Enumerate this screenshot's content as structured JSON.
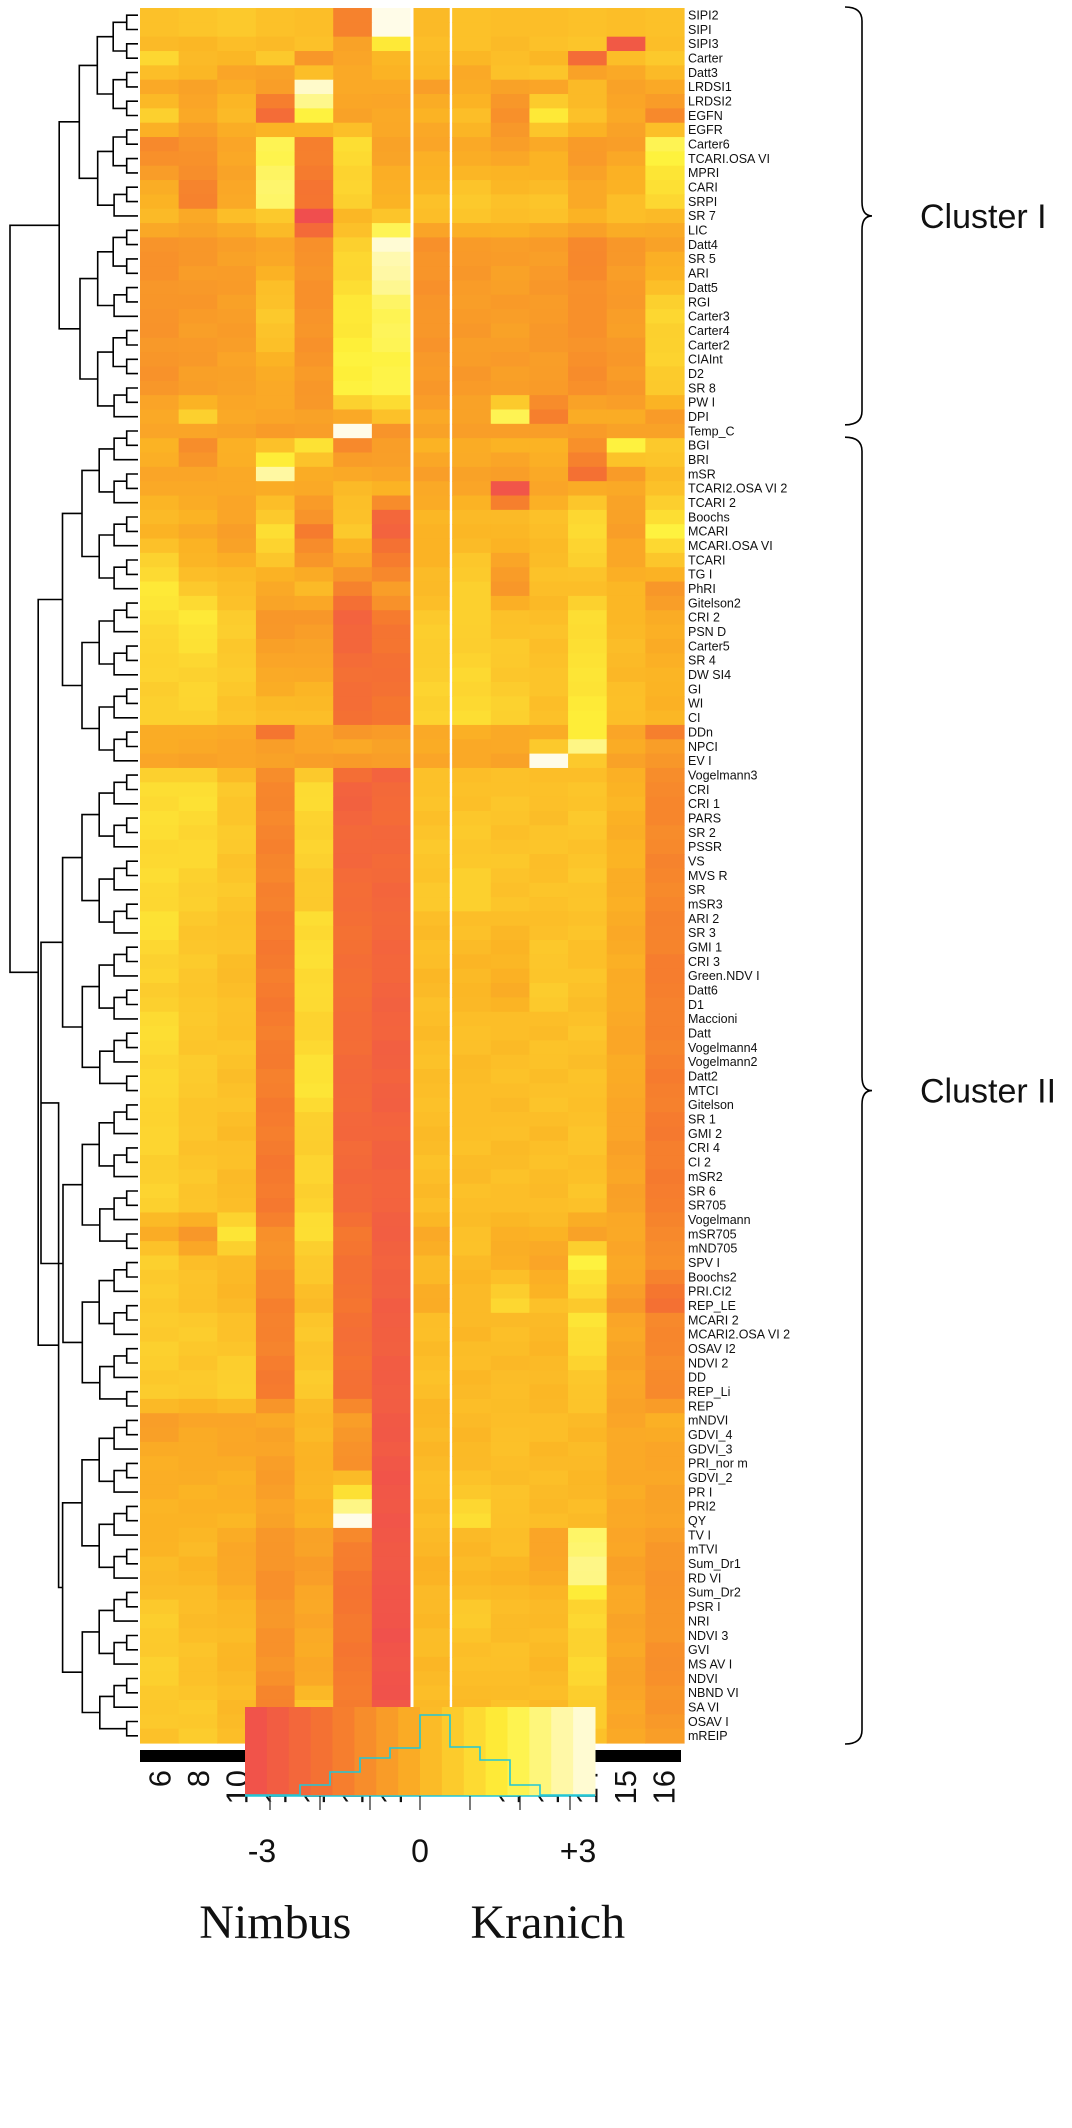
{
  "chart_data": {
    "type": "heatmap",
    "groups": [
      {
        "name": "Nimbus",
        "columns": [
          "6",
          "8",
          "10",
          "13",
          "14",
          "15",
          "16"
        ]
      },
      {
        "name": "Kranich",
        "columns": [
          "6",
          "8",
          "10",
          "13",
          "14",
          "15",
          "16"
        ]
      }
    ],
    "rows": [
      "SIPI2",
      "SIPI",
      "SIPI3",
      "Carter",
      "Datt3",
      "LRDSI1",
      "LRDSI2",
      "EGFN",
      "EGFR",
      "Carter6",
      "TCARI.OSA VI",
      "MPRI",
      "CARI",
      "SRPI",
      "SR 7",
      "LIC",
      "Datt4",
      "SR 5",
      "ARI",
      "Datt5",
      "RGI",
      "Carter3",
      "Carter4",
      "Carter2",
      "CIAInt",
      "D2",
      "SR 8",
      "PW I",
      "DPI",
      "Temp_C",
      "BGI",
      "BRI",
      "mSR",
      "TCARI2.OSA VI 2",
      "TCARI 2",
      "Boochs",
      "MCARI",
      "MCARI.OSA VI",
      "TCARI",
      "TG I",
      "PhRI",
      "Gitelson2",
      "CRI 2",
      "PSN D",
      "Carter5",
      "SR 4",
      "DW SI4",
      "GI",
      "WI",
      "CI",
      "DDn",
      "NPCI",
      "EV I",
      "Vogelmann3",
      "CRI",
      "CRI 1",
      "PARS",
      "SR 2",
      "PSSR",
      "VS",
      "MVS R",
      "SR",
      "mSR3",
      "ARI 2",
      "SR 3",
      "GMI 1",
      "CRI 3",
      "Green.NDV I",
      "Datt6",
      "D1",
      "Maccioni",
      "Datt",
      "Vogelmann4",
      "Vogelmann2",
      "Datt2",
      "MTCI",
      "Gitelson",
      "SR 1",
      "GMI 2",
      "CRI 4",
      "CI 2",
      "mSR2",
      "SR 6",
      "SR705",
      "Vogelmann",
      "mSR705",
      "mND705",
      "SPV I",
      "Boochs2",
      "PRI.CI2",
      "REP_LE",
      "MCARI 2",
      "MCARI2.OSA VI 2",
      "OSAV I2",
      "NDVI 2",
      "DD",
      "REP_Li",
      "REP",
      "mNDVI",
      "GDVI_4",
      "GDVI_3",
      "PRI_nor m",
      "GDVI_2",
      "PR I",
      "PRI2",
      "QY",
      "TV I",
      "mTVI",
      "Sum_Dr1",
      "RD VI",
      "Sum_Dr2",
      "PSR I",
      "NRI",
      "NDVI 3",
      "GVI",
      "MS AV I",
      "NDVI",
      "NBND VI",
      "SA VI",
      "OSAV I",
      "mREIP"
    ],
    "clusters": [
      {
        "label": "Cluster I",
        "first_row": "SIPI2",
        "last_row": "DPI"
      },
      {
        "label": "Cluster II",
        "first_row": "BGI",
        "last_row": "mREIP"
      }
    ],
    "color_scale": {
      "min_label": "-3",
      "mid_label": "0",
      "max_label": "+3",
      "range": [
        -3.5,
        3.5
      ],
      "stops": [
        "#f04e4e",
        "#f5762f",
        "#fbb324",
        "#fef23a",
        "#fffce8"
      ]
    },
    "row_profiles": {
      "SIPI2": [
        0.4,
        0.5,
        0.6,
        0.4,
        0.3,
        -1.4,
        3.5,
        0.2,
        0.4,
        0.3,
        0.3,
        0.4,
        0.3,
        0.4
      ],
      "SIPI": [
        0.4,
        0.5,
        0.6,
        0.4,
        0.3,
        -1.4,
        3.5,
        0.2,
        0.4,
        0.3,
        0.3,
        0.4,
        0.3,
        0.4
      ],
      "SIPI3": [
        0.2,
        0.1,
        0.3,
        0.2,
        0.4,
        -0.5,
        1.5,
        0.3,
        0.4,
        0.2,
        0.4,
        0.5,
        -3,
        0.3
      ],
      "Carter": [
        1.0,
        0.2,
        0.1,
        0.6,
        -0.8,
        -0.4,
        0.1,
        0.2,
        0.1,
        0.3,
        0.1,
        -2.2,
        0.3,
        0.6
      ],
      "Datt3": [
        0.3,
        0.1,
        -0.4,
        -0.5,
        0.3,
        -0.3,
        0.0,
        0.1,
        -0.3,
        0.4,
        0.5,
        -0.5,
        -0.3,
        0.2
      ],
      "LRDSI1": [
        -0.3,
        -0.5,
        -0.2,
        -0.6,
        3.2,
        -0.3,
        -0.3,
        -0.6,
        -0.2,
        -0.5,
        -0.4,
        0.2,
        -0.5,
        -0.3
      ],
      "EGFN": [
        0.8,
        -0.3,
        0.2,
        -2.2,
        1.8,
        -0.5,
        -0.3,
        0.0,
        0.3,
        -1.0,
        1.5,
        0.4,
        -0.3,
        -1.2
      ],
      "Carter6": [
        -1.2,
        -0.9,
        -0.4,
        2.0,
        -1.5,
        1.2,
        -0.5,
        -0.4,
        -0.3,
        -0.6,
        -0.3,
        -0.7,
        -0.6,
        2.0
      ],
      "SRPI": [
        0.0,
        -1.4,
        -0.3,
        2.2,
        -1.8,
        0.8,
        0.0,
        0.4,
        0.6,
        0.4,
        0.5,
        -0.3,
        0.3,
        1.0
      ],
      "SR 7": [
        0.2,
        -0.3,
        0.3,
        0.6,
        -3.5,
        0.1,
        0.5,
        0.3,
        0.5,
        0.3,
        0.4,
        0.0,
        0.3,
        0.2
      ],
      "Datt4": [
        -0.9,
        -0.8,
        -0.6,
        -0.4,
        -1.0,
        0.8,
        3.3,
        -1.0,
        -0.7,
        -0.6,
        -0.7,
        -1.2,
        -0.8,
        -0.5
      ],
      "Carter3": [
        -0.9,
        -0.7,
        -0.6,
        0.6,
        -0.9,
        1.5,
        2.0,
        -0.8,
        -0.7,
        -0.6,
        -0.7,
        -1.0,
        -0.6,
        1.0
      ],
      "SR 8": [
        -0.8,
        -0.6,
        -0.5,
        -0.3,
        -0.8,
        1.8,
        1.9,
        -0.8,
        -0.7,
        -0.6,
        -0.7,
        -1.0,
        -0.8,
        0.6
      ],
      "DPI": [
        -0.3,
        0.8,
        -0.3,
        -0.4,
        -0.5,
        -0.3,
        0.4,
        -0.3,
        -0.5,
        2.0,
        -1.5,
        -0.2,
        -0.2,
        -0.7
      ],
      "Temp_C": [
        -0.4,
        -0.4,
        -0.5,
        -0.7,
        -0.6,
        3.6,
        -0.9,
        -0.5,
        -0.6,
        -0.6,
        -0.6,
        -0.7,
        -0.5,
        -0.5
      ],
      "BGI": [
        0.0,
        -1.1,
        -0.1,
        0.4,
        1.3,
        -1.2,
        -0.6,
        0.0,
        -0.2,
        0.0,
        0.0,
        -1.0,
        1.8,
        0.6
      ],
      "mSR": [
        -0.4,
        -0.4,
        -0.3,
        2.8,
        -0.2,
        -0.3,
        -0.4,
        -0.6,
        -0.5,
        -0.6,
        -0.3,
        -2.0,
        -0.7,
        0.2
      ],
      "TCARI2.OSA VI 2": [
        -0.3,
        -0.3,
        -0.3,
        -0.2,
        -0.3,
        0.2,
        0.0,
        -0.3,
        -0.4,
        -3.2,
        -0.4,
        -0.2,
        -0.3,
        0.4
      ],
      "Boochs": [
        0.2,
        0.0,
        -0.4,
        0.6,
        -0.9,
        0.4,
        -2.4,
        0.1,
        0.2,
        0.2,
        0.4,
        1.0,
        -0.5,
        1.2
      ],
      "MCARI": [
        0.0,
        -0.3,
        -0.6,
        1.2,
        -1.6,
        0.6,
        -2.6,
        0.0,
        0.1,
        0.1,
        0.3,
        1.1,
        -0.6,
        1.8
      ],
      "PhRI": [
        1.5,
        0.6,
        0.3,
        -0.3,
        0.2,
        -1.4,
        -0.6,
        0.2,
        0.8,
        -0.8,
        0.3,
        0.3,
        0.1,
        -0.8
      ],
      "CRI 2": [
        1.2,
        1.5,
        0.7,
        -0.8,
        -0.8,
        -2.6,
        -1.6,
        0.6,
        0.8,
        0.4,
        0.3,
        1.2,
        0.1,
        -0.2
      ],
      "SR 4": [
        0.9,
        1.0,
        0.6,
        -0.4,
        -0.4,
        -2.2,
        -2.0,
        0.7,
        0.9,
        0.6,
        0.4,
        1.3,
        0.2,
        -0.1
      ],
      "CI": [
        0.8,
        0.8,
        0.5,
        0.3,
        0.3,
        -2.0,
        -1.8,
        0.9,
        1.2,
        0.8,
        0.4,
        1.6,
        0.3,
        0.1
      ],
      "DDn": [
        -0.2,
        -0.2,
        -0.3,
        -1.8,
        -0.4,
        -0.8,
        -0.7,
        -0.3,
        -0.1,
        -0.3,
        -0.2,
        1.6,
        -0.4,
        -1.5
      ],
      "NPCI": [
        -0.2,
        -0.3,
        -0.4,
        -0.6,
        -0.4,
        -0.3,
        -0.5,
        -0.2,
        -0.3,
        -0.3,
        0.6,
        2.5,
        -0.2,
        -0.6
      ],
      "EV I": [
        -0.4,
        -0.5,
        -0.4,
        -0.5,
        -0.6,
        -0.7,
        -0.6,
        -0.4,
        -0.3,
        -0.5,
        3.5,
        0.6,
        -0.5,
        -0.8
      ],
      "Vogelmann3": [
        0.8,
        0.8,
        0.2,
        -1.1,
        0.6,
        -2.1,
        -2.6,
        0.4,
        0.3,
        0.4,
        0.3,
        0.3,
        -0.1,
        -1.1
      ],
      "CRI": [
        1.2,
        1.2,
        0.6,
        -1.3,
        1.1,
        -2.6,
        -2.3,
        0.4,
        0.4,
        0.4,
        0.4,
        0.5,
        0.0,
        -1.2
      ],
      "mSR3": [
        1.0,
        0.8,
        0.5,
        -1.4,
        0.6,
        -2.2,
        -2.4,
        0.6,
        0.8,
        0.5,
        0.4,
        0.5,
        -0.1,
        -1.3
      ],
      "ARI 2": [
        1.3,
        0.6,
        0.4,
        -1.6,
        1.2,
        -2.1,
        -2.3,
        0.3,
        0.3,
        0.3,
        0.3,
        0.4,
        -0.2,
        -1.4
      ],
      "Datt6": [
        0.7,
        0.5,
        0.3,
        -1.6,
        1.1,
        -2.0,
        -2.6,
        0.2,
        0.1,
        -0.2,
        0.7,
        0.4,
        -0.2,
        -1.5
      ],
      "Maccioni": [
        1.1,
        0.6,
        0.4,
        -1.6,
        0.9,
        -2.2,
        -2.6,
        0.3,
        0.3,
        0.3,
        0.3,
        0.4,
        -0.3,
        -1.4
      ],
      "MTCI": [
        1.0,
        0.6,
        0.4,
        -1.5,
        1.4,
        -2.3,
        -2.7,
        0.3,
        0.3,
        0.3,
        0.4,
        0.4,
        -0.3,
        -1.5
      ],
      "SR 1": [
        0.9,
        0.5,
        0.3,
        -1.6,
        0.8,
        -2.4,
        -2.6,
        0.3,
        0.3,
        0.3,
        0.3,
        0.4,
        -0.4,
        -1.6
      ],
      "SR705": [
        0.8,
        0.5,
        0.3,
        -1.7,
        0.9,
        -2.3,
        -2.6,
        0.3,
        0.3,
        0.3,
        0.3,
        0.4,
        -0.5,
        -1.5
      ],
      "mSR705": [
        -0.2,
        -0.8,
        1.4,
        -1.0,
        1.2,
        -1.7,
        -2.8,
        -0.3,
        0.4,
        -0.1,
        0.0,
        -0.5,
        -0.3,
        -1.2
      ],
      "SPV I": [
        0.8,
        0.3,
        0.2,
        -1.0,
        0.6,
        -2.0,
        -2.6,
        0.2,
        0.2,
        -0.1,
        -0.4,
        1.8,
        -0.3,
        -1.0
      ],
      "REP_LE": [
        0.6,
        0.4,
        0.2,
        -1.5,
        0.2,
        -1.8,
        -2.9,
        -0.2,
        0.2,
        1.0,
        0.4,
        0.6,
        -0.8,
        -2.0
      ],
      "MCARI 2": [
        0.7,
        0.6,
        0.4,
        -1.4,
        0.5,
        -2.0,
        -2.8,
        0.3,
        0.2,
        0.2,
        0.2,
        1.4,
        -0.4,
        -1.2
      ],
      "REP_Li": [
        0.7,
        0.6,
        0.8,
        -1.6,
        0.6,
        -2.0,
        -2.8,
        0.3,
        0.2,
        0.3,
        0.1,
        0.5,
        -0.4,
        -1.2
      ],
      "mNDVI": [
        -0.6,
        -0.4,
        -0.4,
        -0.3,
        0.1,
        -0.6,
        -3.0,
        0.1,
        0.2,
        0.3,
        0.3,
        0.2,
        -0.4,
        -0.1
      ],
      "PRI_nor m": [
        -0.1,
        -0.2,
        -0.2,
        -0.6,
        0.0,
        -1.0,
        -3.1,
        0.2,
        0.2,
        0.3,
        0.2,
        0.2,
        -0.3,
        -0.4
      ],
      "QY": [
        0.0,
        0.0,
        0.1,
        -0.5,
        0.0,
        3.7,
        -3.2,
        0.3,
        1.2,
        0.4,
        0.3,
        0.2,
        -0.3,
        -0.4
      ],
      "TV I": [
        0.0,
        0.1,
        -0.2,
        -0.8,
        -0.5,
        -1.2,
        -3.1,
        0.2,
        0.2,
        0.3,
        -0.4,
        2.2,
        -0.4,
        -0.6
      ],
      "RD VI": [
        0.2,
        0.1,
        -0.3,
        -1.0,
        -0.6,
        -1.8,
        -3.1,
        0.0,
        0.1,
        0.0,
        -0.2,
        2.5,
        -0.5,
        -0.9
      ],
      "PSR I": [
        0.6,
        0.3,
        0.1,
        -0.8,
        -0.3,
        -1.8,
        -3.2,
        0.2,
        0.6,
        0.3,
        0.2,
        0.9,
        -0.3,
        -0.8
      ],
      "NDVI": [
        0.8,
        0.4,
        0.2,
        -1.0,
        -0.3,
        -1.6,
        -3.3,
        0.2,
        0.3,
        0.3,
        0.2,
        1.0,
        -0.5,
        -1.0
      ],
      "mREIP": [
        0.4,
        0.7,
        0.3,
        -1.8,
        1.1,
        -1.4,
        -3.1,
        0.1,
        0.2,
        0.3,
        0.2,
        0.4,
        -0.3,
        -0.6
      ]
    },
    "xlabel": "",
    "ylabel": ""
  }
}
